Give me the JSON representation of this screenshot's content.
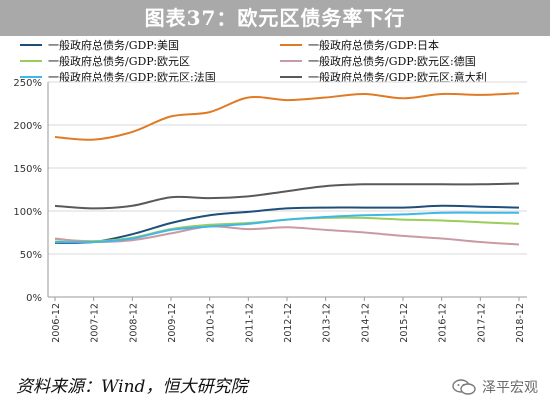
{
  "title": "图表37：欧元区债务率下行",
  "source": "资料来源：Wind，恒大研究院",
  "watermark": "泽平宏观",
  "chart_data": {
    "type": "line",
    "categories": [
      "2006-12",
      "2007-12",
      "2008-12",
      "2009-12",
      "2010-12",
      "2011-12",
      "2012-12",
      "2013-12",
      "2014-12",
      "2015-12",
      "2016-12",
      "2017-12",
      "2018-12"
    ],
    "x_ticks": [
      "2006-12",
      "2007-12",
      "2008-12",
      "2009-12",
      "2010-12",
      "2011-12",
      "2012-12",
      "2013-12",
      "2014-12",
      "2015-12",
      "2016-12",
      "2017-12",
      "2018-12"
    ],
    "y_ticks": [
      "0%",
      "50%",
      "100%",
      "150%",
      "200%",
      "250%"
    ],
    "ylim": [
      0,
      250
    ],
    "grid": true,
    "legend_position": "top",
    "series": [
      {
        "name": "一般政府总债务/GDP:美国",
        "color": "#1f4e79",
        "values": [
          63,
          64,
          73,
          86,
          95,
          99,
          103,
          104,
          104,
          104,
          106,
          105,
          104
        ]
      },
      {
        "name": "一般政府总债务/GDP:日本",
        "color": "#e07b25",
        "values": [
          186,
          183,
          192,
          210,
          215,
          232,
          229,
          232,
          236,
          231,
          236,
          235,
          237
        ]
      },
      {
        "name": "一般政府总债务/GDP:欧元区",
        "color": "#9acd5a",
        "values": [
          67,
          65,
          69,
          79,
          84,
          86,
          90,
          92,
          92,
          90,
          89,
          87,
          85
        ]
      },
      {
        "name": "一般政府总债务/GDP:欧元区:德国",
        "color": "#c99aa3",
        "values": [
          68,
          64,
          66,
          74,
          82,
          79,
          81,
          78,
          75,
          71,
          68,
          64,
          61
        ]
      },
      {
        "name": "一般政府总债务/GDP:欧元区:法国",
        "color": "#3eb8e8",
        "values": [
          64,
          64,
          68,
          78,
          82,
          85,
          90,
          93,
          95,
          96,
          98,
          98,
          98
        ]
      },
      {
        "name": "一般政府总债务/GDP:欧元区:意大利",
        "color": "#595959",
        "values": [
          106,
          103,
          106,
          116,
          115,
          117,
          123,
          129,
          131,
          131,
          131,
          131,
          132
        ]
      }
    ]
  }
}
